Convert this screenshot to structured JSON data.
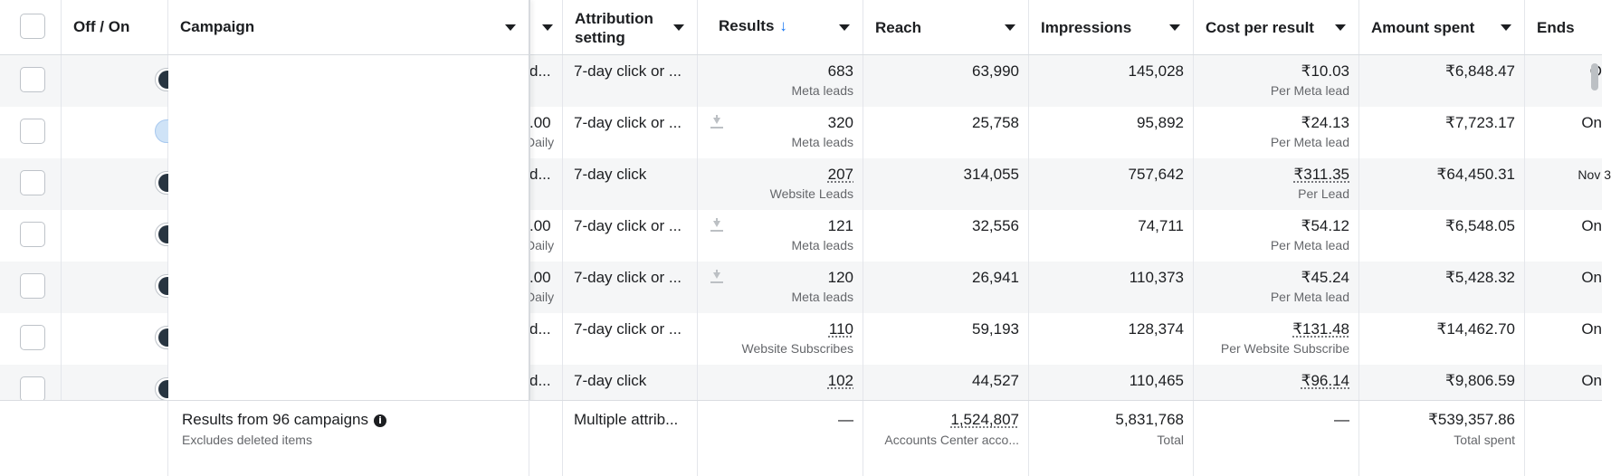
{
  "header": {
    "off_on": "Off / On",
    "campaign": "Campaign",
    "attribution": "Attribution setting",
    "results": "Results",
    "results_sort": "↓",
    "reach": "Reach",
    "impressions": "Impressions",
    "cost_per_result": "Cost per result",
    "amount_spent": "Amount spent",
    "ends": "Ends"
  },
  "rows": [
    {
      "on": false,
      "budget": "d...",
      "budget_sub": "",
      "attribution": "7-day click or ...",
      "download": false,
      "results": "683",
      "results_sub": "Meta leads",
      "results_dotted": false,
      "reach": "63,990",
      "impressions": "145,028",
      "cost": "₹10.03",
      "cost_sub": "Per Meta lead",
      "cost_dotted": false,
      "spent": "₹6,848.47",
      "ends": "O"
    },
    {
      "on": true,
      "budget": ".00",
      "budget_sub": "Daily",
      "attribution": "7-day click or ...",
      "download": true,
      "results": "320",
      "results_sub": "Meta leads",
      "results_dotted": false,
      "reach": "25,758",
      "impressions": "95,892",
      "cost": "₹24.13",
      "cost_sub": "Per Meta lead",
      "cost_dotted": false,
      "spent": "₹7,723.17",
      "ends": "On"
    },
    {
      "on": false,
      "budget": "d...",
      "budget_sub": "",
      "attribution": "7-day click",
      "download": false,
      "results": "207",
      "results_sub": "Website Leads",
      "results_dotted": true,
      "reach": "314,055",
      "impressions": "757,642",
      "cost": "₹311.35",
      "cost_sub": "Per Lead",
      "cost_dotted": true,
      "spent": "₹64,450.31",
      "ends": "Nov 3"
    },
    {
      "on": false,
      "budget": ".00",
      "budget_sub": "Daily",
      "attribution": "7-day click or ...",
      "download": true,
      "results": "121",
      "results_sub": "Meta leads",
      "results_dotted": false,
      "reach": "32,556",
      "impressions": "74,711",
      "cost": "₹54.12",
      "cost_sub": "Per Meta lead",
      "cost_dotted": false,
      "spent": "₹6,548.05",
      "ends": "On"
    },
    {
      "on": false,
      "budget": ".00",
      "budget_sub": "Daily",
      "attribution": "7-day click or ...",
      "download": true,
      "results": "120",
      "results_sub": "Meta leads",
      "results_dotted": false,
      "reach": "26,941",
      "impressions": "110,373",
      "cost": "₹45.24",
      "cost_sub": "Per Meta lead",
      "cost_dotted": false,
      "spent": "₹5,428.32",
      "ends": "On"
    },
    {
      "on": false,
      "budget": "d...",
      "budget_sub": "",
      "attribution": "7-day click or ...",
      "download": false,
      "results": "110",
      "results_sub": "Website Subscribes",
      "results_dotted": true,
      "reach": "59,193",
      "impressions": "128,374",
      "cost": "₹131.48",
      "cost_sub": "Per Website Subscribe",
      "cost_dotted": true,
      "spent": "₹14,462.70",
      "ends": "On"
    },
    {
      "on": false,
      "budget": "d...",
      "budget_sub": "",
      "attribution": "7-day click",
      "download": false,
      "results": "102",
      "results_sub": "",
      "results_dotted": true,
      "reach": "44,527",
      "impressions": "110,465",
      "cost": "₹96.14",
      "cost_sub": "",
      "cost_dotted": true,
      "spent": "₹9,806.59",
      "ends": "On"
    }
  ],
  "footer": {
    "summary": "Results from 96 campaigns",
    "summary_sub": "Excludes deleted items",
    "attribution": "Multiple attrib...",
    "results": "—",
    "reach": "1,524,807",
    "reach_sub": "Accounts Center acco...",
    "impressions": "5,831,768",
    "impressions_sub": "Total",
    "cost": "—",
    "spent": "₹539,357.86",
    "spent_sub": "Total spent"
  }
}
